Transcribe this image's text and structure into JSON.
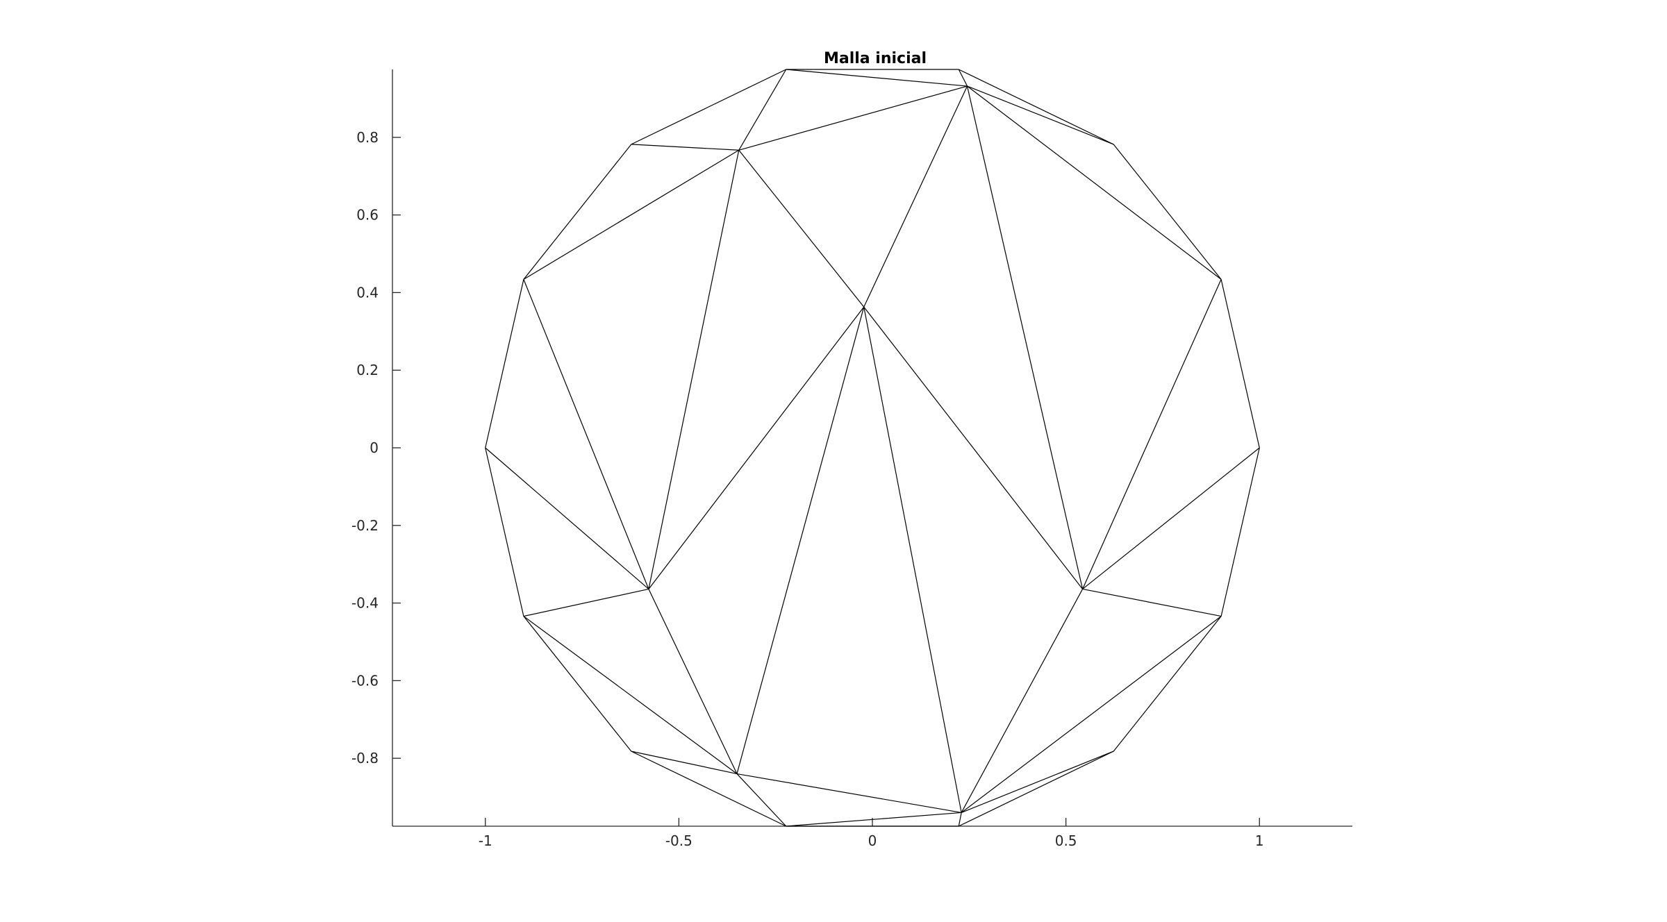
{
  "chart_data": {
    "type": "line",
    "title": "Malla inicial",
    "xlabel": "",
    "ylabel": "",
    "xlim": [
      -1.24,
      1.24
    ],
    "ylim": [
      -0.975,
      0.975
    ],
    "x_ticks": [
      -1,
      -0.5,
      0,
      0.5,
      1
    ],
    "x_tick_labels": [
      "-1",
      "-0.5",
      "0",
      "0.5",
      "1"
    ],
    "y_ticks": [
      -0.8,
      -0.6,
      -0.4,
      -0.2,
      0,
      0.2,
      0.4,
      0.6,
      0.8
    ],
    "y_tick_labels": [
      "-0.8",
      "-0.6",
      "-0.4",
      "-0.2",
      "0",
      "0.2",
      "0.4",
      "0.6",
      "0.8"
    ],
    "grid": false,
    "line_color": "#000000",
    "nodes": [
      [
        1,
        0
      ],
      [
        0.901,
        0.434
      ],
      [
        0.623,
        0.782
      ],
      [
        0.223,
        0.975
      ],
      [
        -0.223,
        0.975
      ],
      [
        -0.623,
        0.782
      ],
      [
        -0.901,
        0.434
      ],
      [
        -1,
        0
      ],
      [
        -0.901,
        -0.434
      ],
      [
        -0.623,
        -0.782
      ],
      [
        -0.223,
        -0.975
      ],
      [
        0.223,
        -0.975
      ],
      [
        0.623,
        -0.782
      ],
      [
        0.901,
        -0.434
      ],
      [
        -0.345,
        0.767
      ],
      [
        0.245,
        0.932
      ],
      [
        -0.022,
        0.363
      ],
      [
        -0.578,
        -0.364
      ],
      [
        0.543,
        -0.364
      ],
      [
        -0.35,
        -0.84
      ],
      [
        0.23,
        -0.94
      ]
    ],
    "edges": [
      [
        0,
        1
      ],
      [
        1,
        2
      ],
      [
        2,
        3
      ],
      [
        3,
        4
      ],
      [
        4,
        5
      ],
      [
        5,
        6
      ],
      [
        6,
        7
      ],
      [
        7,
        8
      ],
      [
        8,
        9
      ],
      [
        9,
        10
      ],
      [
        10,
        11
      ],
      [
        11,
        12
      ],
      [
        12,
        13
      ],
      [
        13,
        0
      ],
      [
        4,
        14
      ],
      [
        14,
        15
      ],
      [
        15,
        3
      ],
      [
        4,
        15
      ],
      [
        14,
        5
      ],
      [
        14,
        6
      ],
      [
        15,
        2
      ],
      [
        15,
        1
      ],
      [
        15,
        16
      ],
      [
        14,
        16
      ],
      [
        14,
        17
      ],
      [
        6,
        17
      ],
      [
        7,
        17
      ],
      [
        8,
        17
      ],
      [
        8,
        19
      ],
      [
        17,
        19
      ],
      [
        9,
        19
      ],
      [
        10,
        19
      ],
      [
        19,
        20
      ],
      [
        10,
        20
      ],
      [
        11,
        20
      ],
      [
        12,
        20
      ],
      [
        13,
        20
      ],
      [
        18,
        20
      ],
      [
        16,
        17
      ],
      [
        16,
        19
      ],
      [
        16,
        20
      ],
      [
        16,
        18
      ],
      [
        1,
        18
      ],
      [
        0,
        18
      ],
      [
        13,
        18
      ],
      [
        15,
        18
      ]
    ]
  }
}
